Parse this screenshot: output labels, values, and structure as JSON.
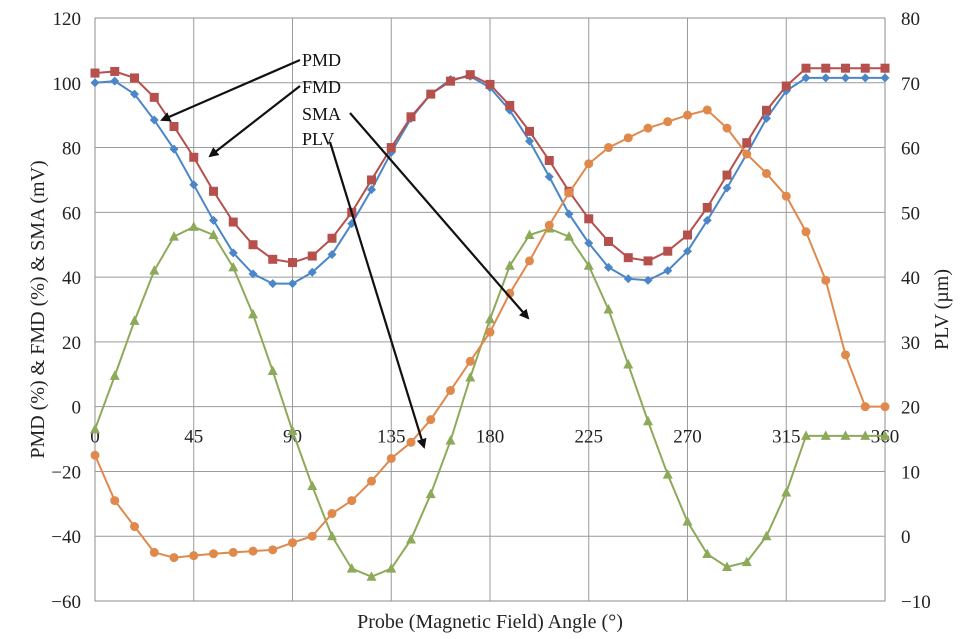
{
  "chart_data": {
    "type": "line",
    "xlabel": "Probe (Magnetic Field) Angle (°)",
    "ylabel": "PMD (%) & FMD (%) & SMA (mV)",
    "y2label": "PLV (µm)",
    "xlim": [
      0,
      360
    ],
    "ylim": [
      -60,
      120
    ],
    "y2lim": [
      -10,
      80
    ],
    "grid": true,
    "x_ticks": [
      "0",
      "45",
      "90",
      "135",
      "180",
      "225",
      "270",
      "315",
      "360"
    ],
    "y_ticks": [
      "120",
      "100",
      "80",
      "60",
      "40",
      "20",
      "0",
      "−20",
      "−40",
      "−60"
    ],
    "y2_ticks": [
      "80",
      "70",
      "60",
      "50",
      "40",
      "30",
      "20",
      "10",
      "0",
      "−10"
    ],
    "annotations": [
      "PMD",
      "FMD",
      "SMA",
      "PLV"
    ],
    "x": [
      0,
      9,
      18,
      27,
      36,
      45,
      54,
      63,
      72,
      81,
      90,
      99,
      108,
      117,
      126,
      135,
      144,
      153,
      162,
      171,
      180,
      189,
      198,
      207,
      216,
      225,
      234,
      243,
      252,
      261,
      270,
      279,
      288,
      297,
      306,
      315,
      324,
      333,
      342,
      351,
      360
    ],
    "series": [
      {
        "name": "PMD",
        "axis": "left",
        "color": "#4a86c8",
        "marker": "diamond",
        "values": [
          100,
          100.5,
          96.5,
          88.5,
          79.5,
          68.5,
          57.5,
          47.5,
          41,
          38,
          38,
          41.5,
          47,
          56.5,
          67,
          78.5,
          89,
          96.5,
          101,
          102,
          98.5,
          91.5,
          82,
          71,
          59.5,
          50.5,
          43,
          39.5,
          39,
          42,
          48,
          57.5,
          67.5,
          78,
          89,
          97.5,
          101.5,
          101.5,
          101.5,
          101.5,
          101.5
        ]
      },
      {
        "name": "FMD",
        "axis": "left",
        "color": "#b5504c",
        "marker": "square",
        "values": [
          103,
          103.5,
          101.5,
          95.5,
          86.5,
          77,
          66.5,
          57,
          50,
          45.5,
          44.5,
          46.5,
          52,
          60,
          70,
          80,
          89.5,
          96.5,
          100.5,
          102.5,
          99.5,
          93,
          85,
          76,
          66.5,
          58,
          51,
          46,
          45,
          48,
          53,
          61.5,
          71.5,
          81.5,
          91.5,
          99,
          104.5,
          104.5,
          104.5,
          104.5,
          104.5
        ]
      },
      {
        "name": "SMA",
        "axis": "left",
        "color": "#8daa5a",
        "marker": "triangle",
        "values": [
          -7,
          9.5,
          26.5,
          42,
          52.5,
          55.5,
          53,
          43,
          28.5,
          11,
          -7.5,
          -24.5,
          -40,
          -50,
          -52.5,
          -50,
          -41,
          -27,
          -10.5,
          9,
          27,
          43.5,
          53,
          55,
          52.5,
          43.5,
          30,
          13,
          -4.5,
          -21,
          -35.5,
          -45.5,
          -49.5,
          -48,
          -40,
          -26.5,
          -9,
          -9,
          -9,
          -9,
          -9
        ]
      },
      {
        "name": "PLV",
        "axis": "right",
        "color": "#e0894c",
        "marker": "circle",
        "values": [
          12.5,
          5.5,
          1.5,
          -2.5,
          -3.3,
          -3.0,
          -2.7,
          -2.5,
          -2.3,
          -2.1,
          -1.0,
          0,
          3.5,
          5.5,
          8.5,
          12,
          14.5,
          18,
          22.5,
          27,
          31.5,
          37.5,
          42.5,
          48,
          53,
          57.5,
          60,
          61.5,
          63,
          64,
          65,
          65.8,
          63,
          59,
          56,
          52.5,
          47,
          39.5,
          28,
          20,
          20
        ]
      }
    ]
  }
}
